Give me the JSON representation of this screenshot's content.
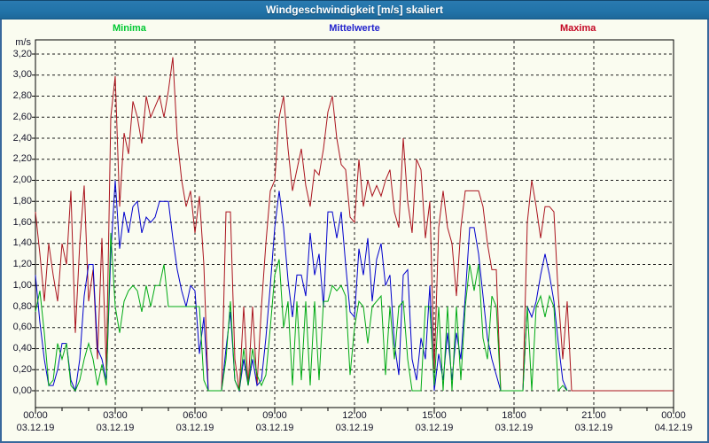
{
  "window": {
    "title": "Windgeschwindigkeit [m/s] skaliert"
  },
  "colors": {
    "page_background": "#fafcf0",
    "page_border": "#38689c",
    "titlebar_background": "#2173a8",
    "titlebar_text": "#ffffff",
    "plot_frame": "#000000",
    "gridline": "#1c1c1c",
    "axis_text": "#141428"
  },
  "legend": [
    {
      "label": "Minima",
      "color": "#00c832"
    },
    {
      "label": "Mittelwerte",
      "color": "#2323cc"
    },
    {
      "label": "Maxima",
      "color": "#c40824"
    }
  ],
  "y_axis": {
    "unit": "m/s",
    "tick_labels": [
      "3,20",
      "3,00",
      "2,80",
      "2,60",
      "2,40",
      "2,20",
      "2,00",
      "1,80",
      "1,60",
      "1,40",
      "1,20",
      "1,00",
      "0,80",
      "0,60",
      "0,40",
      "0,20",
      "0,00"
    ]
  },
  "x_axis": {
    "major_ticks": [
      {
        "time": "00:00",
        "date": "03.12.19"
      },
      {
        "time": "03:00",
        "date": "03.12.19"
      },
      {
        "time": "06:00",
        "date": "03.12.19"
      },
      {
        "time": "09:00",
        "date": "03.12.19"
      },
      {
        "time": "12:00",
        "date": "03.12.19"
      },
      {
        "time": "15:00",
        "date": "03.12.19"
      },
      {
        "time": "18:00",
        "date": "03.12.19"
      },
      {
        "time": "21:00",
        "date": "03.12.19"
      },
      {
        "time": "00:00",
        "date": "04.12.19"
      }
    ],
    "minor_tick_hours": 1
  },
  "chart_data": {
    "type": "line",
    "title": "Windgeschwindigkeit [m/s] skaliert",
    "ylabel": "m/s",
    "ylim": [
      0,
      3.2
    ],
    "y_grid_step": 0.2,
    "x_range_hours": [
      0,
      24
    ],
    "x_major_grid_hours": 3,
    "sample_interval_minutes": 10,
    "grid": "dashed",
    "legend_position": "top",
    "series": [
      {
        "name": "Maxima",
        "color": "#aa141e",
        "values": [
          1.7,
          1.3,
          0.85,
          1.4,
          1.1,
          0.85,
          1.4,
          1.2,
          1.9,
          0.55,
          1.4,
          1.95,
          0.85,
          1.15,
          0.3,
          1.45,
          0.2,
          2.6,
          2.99,
          1.75,
          2.45,
          2.25,
          2.75,
          2.6,
          2.35,
          2.8,
          2.6,
          2.7,
          2.8,
          2.6,
          2.85,
          3.17,
          2.4,
          2.0,
          1.75,
          1.9,
          1.5,
          1.85,
          1.2,
          0,
          0,
          0,
          0,
          1.7,
          1.7,
          0.3,
          0,
          0.8,
          0.05,
          0.8,
          0.05,
          0.8,
          1.4,
          1.9,
          2.0,
          2.6,
          2.8,
          2.3,
          1.9,
          2.1,
          2.3,
          1.95,
          1.75,
          2.1,
          2.05,
          2.3,
          2.65,
          2.8,
          2.4,
          2.15,
          2.1,
          1.65,
          1.6,
          2.2,
          1.75,
          2.0,
          1.85,
          1.95,
          1.85,
          2.0,
          2.1,
          1.7,
          1.55,
          2.4,
          1.8,
          1.5,
          2.2,
          2.1,
          1.45,
          1.8,
          0.2,
          1.55,
          1.9,
          1.55,
          1.4,
          0.9,
          1.55,
          1.9,
          1.9,
          1.9,
          1.9,
          1.75,
          1.4,
          1.15,
          1.15,
          0,
          0,
          0,
          0,
          0,
          0,
          1.6,
          2.0,
          1.75,
          1.45,
          1.75,
          1.75,
          1.7,
          0.9,
          0.3,
          0.85,
          0,
          0,
          0,
          0,
          0,
          0,
          0,
          0,
          0,
          0,
          0,
          0,
          0,
          0,
          0,
          0,
          0,
          0,
          0,
          0,
          0,
          0,
          0,
          0
        ]
      },
      {
        "name": "Mittelwerte",
        "color": "#0000cc",
        "values": [
          1.1,
          0.65,
          0.3,
          0.05,
          0.05,
          0.2,
          0.45,
          0.45,
          0.1,
          0,
          0.3,
          0.9,
          1.2,
          1.2,
          0.4,
          0.3,
          0.1,
          1.3,
          2.0,
          1.35,
          1.7,
          1.5,
          1.75,
          1.8,
          1.5,
          1.65,
          1.6,
          1.65,
          1.8,
          1.8,
          1.8,
          1.45,
          1.15,
          0.95,
          0.8,
          1.0,
          0.95,
          0.35,
          0.7,
          0,
          0,
          0,
          0,
          0.4,
          0.75,
          0.1,
          0,
          0.3,
          0.05,
          0.3,
          0.05,
          0.1,
          0.5,
          1.0,
          1.55,
          1.9,
          1.55,
          1.05,
          0.7,
          1.1,
          1.1,
          0.9,
          1.5,
          1.1,
          1.3,
          0.8,
          1.7,
          1.7,
          1.45,
          1.7,
          1.2,
          0.75,
          0.7,
          1.35,
          1.1,
          1.45,
          0.85,
          1.25,
          1.4,
          1.0,
          1.1,
          0.45,
          0.15,
          1.1,
          1.15,
          0.3,
          0.1,
          0.5,
          0.3,
          1.0,
          0,
          0.35,
          0.1,
          0.55,
          0.1,
          0.55,
          0.3,
          0.9,
          1.55,
          1.55,
          1.3,
          0.9,
          0.5,
          0.3,
          0.15,
          0,
          0,
          0,
          0,
          0,
          0,
          0.8,
          0.7,
          0.85,
          1.1,
          1.3,
          1.1,
          0.85,
          0.45,
          0.1,
          0,
          null,
          null,
          null,
          null,
          null,
          null,
          null,
          null,
          null,
          null,
          null,
          null,
          null,
          null,
          null,
          null,
          null,
          null,
          null,
          null,
          null,
          null,
          null,
          null
        ]
      },
      {
        "name": "Minima",
        "color": "#00aa14",
        "values": [
          0.75,
          0.95,
          0.55,
          0.05,
          0.1,
          0.45,
          0.3,
          0.45,
          0.05,
          0,
          0.1,
          0.3,
          0.45,
          0.3,
          0.05,
          0.25,
          0.05,
          1.5,
          0.8,
          0.55,
          0.85,
          0.95,
          1.0,
          0.95,
          0.75,
          1.0,
          0.8,
          1.0,
          1.0,
          1.2,
          0.8,
          0.8,
          0.8,
          0.8,
          0.8,
          0.8,
          0.8,
          0.8,
          0.1,
          0,
          0,
          0,
          0,
          0.3,
          0.85,
          0.1,
          0,
          0.4,
          0.05,
          0.4,
          0.15,
          0.05,
          0.15,
          0.6,
          1.1,
          1.25,
          0.6,
          0.85,
          0.05,
          0.85,
          0.1,
          0.85,
          0.05,
          0.85,
          0.1,
          0.85,
          0.85,
          1.0,
          0.95,
          1.0,
          0.9,
          0.15,
          0.6,
          0.85,
          0.8,
          0.45,
          0.8,
          0.85,
          0.9,
          0.15,
          0.8,
          0.3,
          0.8,
          0.85,
          0.3,
          0,
          0,
          0,
          0.8,
          0.8,
          0.05,
          0.8,
          0,
          0.8,
          0,
          0.8,
          0.1,
          0.8,
          1.2,
          0.95,
          1.2,
          0.5,
          0.3,
          0.9,
          0.8,
          0,
          0,
          0,
          0,
          0,
          0,
          0.8,
          0,
          0.8,
          0.9,
          0.7,
          0.9,
          0.8,
          0,
          0.05,
          0,
          null,
          null,
          null,
          null,
          null,
          null,
          null,
          null,
          null,
          null,
          null,
          null,
          null,
          null,
          null,
          null,
          null,
          null,
          null,
          null,
          null,
          null,
          null,
          null
        ]
      }
    ]
  }
}
